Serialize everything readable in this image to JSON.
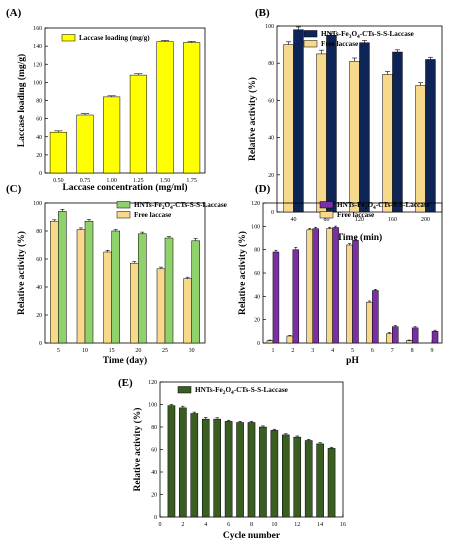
{
  "chart_data": [
    {
      "panel": "(A)",
      "type": "bar",
      "xlabel": "Laccase concentration (mg/ml)",
      "ylabel": "Laccase loading (mg/g)",
      "ylim": [
        0,
        160
      ],
      "yticks": [
        0,
        20,
        40,
        60,
        80,
        100,
        120,
        140,
        160
      ],
      "categories": [
        "0.50",
        "0.75",
        "1.00",
        "1.25",
        "1.50",
        "1.75"
      ],
      "series": [
        {
          "name": "Laccase loading (mg/g)",
          "color": "#ffff00",
          "values": [
            45,
            64,
            84,
            108,
            145,
            144
          ],
          "errors": [
            1.5,
            1.5,
            1.2,
            1.5,
            1.2,
            1.2
          ]
        }
      ],
      "legend_position": "top-left"
    },
    {
      "panel": "(B)",
      "type": "bar",
      "xlabel": "Time (min)",
      "ylabel": "Relative activity (%)",
      "ylim": [
        0,
        100
      ],
      "yticks": [
        0,
        20,
        40,
        60,
        80,
        100
      ],
      "categories": [
        "40",
        "80",
        "120",
        "160",
        "200"
      ],
      "series": [
        {
          "name": "HNTs-Fe3O4-CTs-S-S-Laccase",
          "color": "#0d2456",
          "values": [
            98,
            95,
            91,
            86,
            82
          ],
          "errors": [
            1.5,
            1.2,
            1.2,
            1.2,
            1.2
          ]
        },
        {
          "name": "Free laccase",
          "color": "#f7d98b",
          "values": [
            90,
            85,
            81,
            74,
            68
          ],
          "errors": [
            1.5,
            2.0,
            1.8,
            1.5,
            1.5
          ]
        }
      ],
      "legend_position": "top-right"
    },
    {
      "panel": "(C)",
      "type": "bar",
      "xlabel": "Time (day)",
      "ylabel": "Relative activity (%)",
      "ylim": [
        0,
        100
      ],
      "yticks": [
        0,
        20,
        40,
        60,
        80,
        100
      ],
      "categories": [
        "5",
        "10",
        "15",
        "20",
        "25",
        "30"
      ],
      "series": [
        {
          "name": "HNTs-Fe2O4-CTs-S-S-Laccase",
          "color": "#8fd16b",
          "values": [
            94,
            87,
            80,
            78,
            75,
            73
          ],
          "errors": [
            1.5,
            1.2,
            1.0,
            1.2,
            1.0,
            1.5
          ]
        },
        {
          "name": "Free laccase",
          "color": "#f7d98b",
          "values": [
            87,
            81,
            65,
            57,
            53,
            46
          ],
          "errors": [
            1.0,
            1.2,
            1.2,
            1.2,
            1.2,
            1.0
          ]
        }
      ],
      "legend_position": "top-right"
    },
    {
      "panel": "(D)",
      "type": "bar",
      "xlabel": "pH",
      "ylabel": "Relative activity (%)",
      "ylim": [
        0,
        120
      ],
      "yticks": [
        0,
        20,
        40,
        60,
        80,
        100,
        120
      ],
      "categories": [
        "1",
        "2",
        "3",
        "4",
        "5",
        "6",
        "7",
        "8",
        "9"
      ],
      "series": [
        {
          "name": "HNTs-Fe2O4-CTs-S-S-Laccase",
          "color": "#7a2fa6",
          "values": [
            78,
            80,
            98,
            99,
            88,
            45,
            14,
            13,
            10
          ],
          "errors": [
            1.5,
            2.0,
            1.2,
            1.2,
            1.2,
            1.0,
            1.0,
            1.0,
            1.0
          ]
        },
        {
          "name": "Free laccase",
          "color": "#f7d98b",
          "values": [
            2,
            6,
            97,
            98,
            84,
            35,
            8,
            2,
            0
          ],
          "errors": [
            0.5,
            0.5,
            1.2,
            1.2,
            1.2,
            1.0,
            1.0,
            0.5,
            0
          ]
        }
      ],
      "legend_position": "top-right"
    },
    {
      "panel": "(E)",
      "type": "bar",
      "xlabel": "Cycle number",
      "ylabel": "Relative activity (%)",
      "ylim": [
        0,
        120
      ],
      "yticks": [
        0,
        20,
        40,
        60,
        80,
        100,
        120
      ],
      "xlim": [
        0,
        16
      ],
      "xticks": [
        0,
        2,
        4,
        6,
        8,
        10,
        12,
        14,
        16
      ],
      "x": [
        1,
        2,
        3,
        4,
        5,
        6,
        7,
        8,
        9,
        10,
        11,
        12,
        13,
        14,
        15
      ],
      "series": [
        {
          "name": "HNTs-Fe2O4-CTs-S-S-Laccase",
          "color": "#3a5e22",
          "values": [
            99,
            97,
            92,
            87,
            87,
            85,
            84,
            84,
            80,
            77,
            73,
            71,
            68,
            65,
            61
          ],
          "errors": [
            1.0,
            1.5,
            1.2,
            1.5,
            1.2,
            1.0,
            1.0,
            1.0,
            1.0,
            1.0,
            1.0,
            1.0,
            1.0,
            1.0,
            1.0
          ]
        }
      ],
      "legend_position": "top-left"
    }
  ]
}
